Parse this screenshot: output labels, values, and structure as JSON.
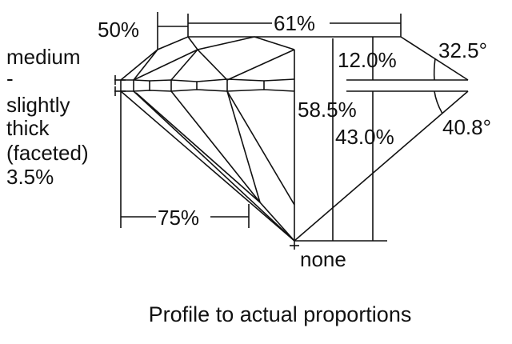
{
  "labels": {
    "star_length": "50%",
    "table": "61%",
    "girdle_lines": [
      "medium",
      "-",
      "slightly",
      "thick",
      "(faceted)",
      "3.5%"
    ],
    "crown_height": "12.0%",
    "crown_angle": "32.5°",
    "total_depth": "58.5%",
    "pavilion_depth": "43.0%",
    "pavilion_angle": "40.8°",
    "lower_half": "75%",
    "culet": "none"
  },
  "caption": "Profile to actual proportions"
}
